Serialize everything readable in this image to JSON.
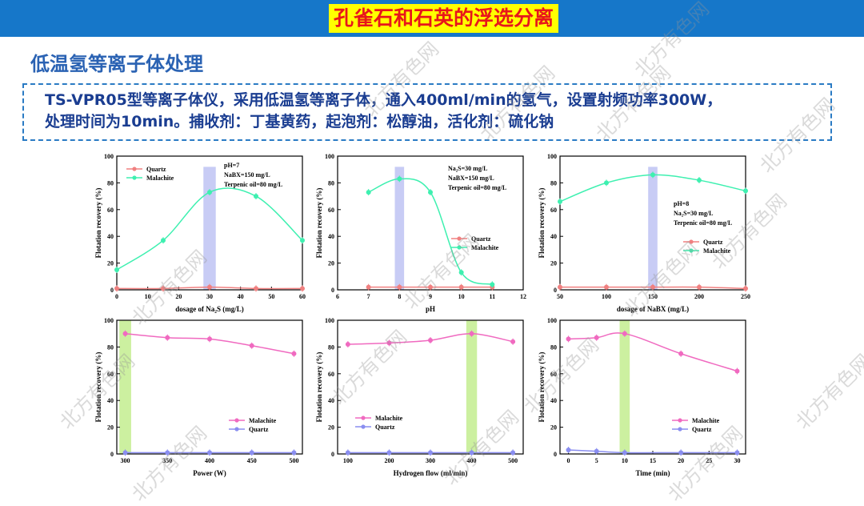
{
  "header": {
    "title": "孔雀石和石英的浮选分离",
    "subtitle": "低温氢等离子体处理",
    "desc_line1": "TS-VPR05型等离子体仪，采用低温氢等离子体，通入400ml/min的氢气，设置射频功率300W，",
    "desc_line2": "处理时间为10min。捕收剂：丁基黄药，起泡剂：松醇油，活化剂：硫化钠",
    "watermark": "北方有色网"
  },
  "colors": {
    "topbar": "#1677c9",
    "title_bg": "#ffff00",
    "title_text": "#e8161b",
    "quartz_top": "#f08080",
    "malachite_top": "#3ef0b0",
    "malachite_bottom": "#f06ac0",
    "quartz_bottom": "#8a8ef0",
    "band_blue": "#c8ccf5",
    "band_green": "#ccf0a0"
  },
  "chart_data": [
    {
      "type": "line",
      "xlabel": "dosage of Na₂S (mg/L)",
      "ylabel": "Flotation recovery (%)",
      "xlim": [
        0,
        60
      ],
      "ylim": [
        0,
        100
      ],
      "xticks": [
        "0",
        "10",
        "20",
        "30",
        "40",
        "50",
        "60"
      ],
      "yticks": [
        "0",
        "20",
        "40",
        "60",
        "80",
        "100"
      ],
      "annotations": [
        "pH=7",
        "NaBX=150 mg/L",
        "Terpenic oil=80 mg/L"
      ],
      "highlight": {
        "color": "blue",
        "from": 28,
        "to": 32
      },
      "legend": "top-left",
      "series": [
        {
          "name": "Quartz",
          "x": [
            0,
            15,
            30,
            45,
            60
          ],
          "y": [
            1,
            1,
            2,
            1,
            1
          ]
        },
        {
          "name": "Malachite",
          "x": [
            0,
            15,
            30,
            45,
            60
          ],
          "y": [
            15,
            37,
            73,
            70,
            37
          ]
        }
      ]
    },
    {
      "type": "line",
      "xlabel": "pH",
      "ylabel": "Flotation recovery (%)",
      "xlim": [
        6,
        12
      ],
      "ylim": [
        0,
        100
      ],
      "xticks": [
        "6",
        "7",
        "8",
        "9",
        "10",
        "11",
        "12"
      ],
      "yticks": [
        "0",
        "20",
        "40",
        "60",
        "80",
        "100"
      ],
      "annotations": [
        "Na₂S=30 mg/L",
        "NaBX=150 mg/L",
        "Terpenic oil=80 mg/L"
      ],
      "highlight": {
        "color": "blue",
        "from": 7.85,
        "to": 8.15
      },
      "legend": "bottom-right",
      "series": [
        {
          "name": "Quartz",
          "x": [
            7,
            8,
            9,
            10,
            11
          ],
          "y": [
            2,
            2,
            2,
            2,
            2
          ]
        },
        {
          "name": "Malachite",
          "x": [
            7,
            8,
            9,
            10,
            11
          ],
          "y": [
            73,
            83,
            73,
            13,
            4
          ]
        }
      ]
    },
    {
      "type": "line",
      "xlabel": "dosage of NaBX (mg/L)",
      "ylabel": "Flotation recovery (%)",
      "xlim": [
        50,
        250
      ],
      "ylim": [
        0,
        100
      ],
      "xticks": [
        "50",
        "100",
        "150",
        "200",
        "250"
      ],
      "yticks": [
        "0",
        "20",
        "40",
        "60",
        "80",
        "100"
      ],
      "annotations": [
        "pH=8",
        "Na₂S=30 mg/L",
        "Terpenic oil=80 mg/L"
      ],
      "highlight": {
        "color": "blue",
        "from": 145,
        "to": 155
      },
      "legend": "bottom-right",
      "series": [
        {
          "name": "Quartz",
          "x": [
            50,
            100,
            150,
            200,
            250
          ],
          "y": [
            2,
            2,
            2,
            2,
            1
          ]
        },
        {
          "name": "Malachite",
          "x": [
            50,
            100,
            150,
            200,
            250
          ],
          "y": [
            66,
            80,
            86,
            82,
            74
          ]
        }
      ]
    },
    {
      "type": "line",
      "xlabel": "Power (W)",
      "ylabel": "Flotation recovery (%)",
      "xlim": [
        290,
        510
      ],
      "ylim": [
        0,
        100
      ],
      "xticks": [
        "300",
        "350",
        "400",
        "450",
        "500"
      ],
      "yticks": [
        "0",
        "20",
        "40",
        "60",
        "80",
        "100"
      ],
      "highlight": {
        "color": "green",
        "from": 293,
        "to": 307
      },
      "legend": "bottom-right",
      "series": [
        {
          "name": "Malachite",
          "x": [
            300,
            350,
            400,
            450,
            500
          ],
          "y": [
            90,
            87,
            86,
            81,
            75
          ]
        },
        {
          "name": "Quartz",
          "x": [
            300,
            350,
            400,
            450,
            500
          ],
          "y": [
            1,
            1,
            1,
            1,
            1
          ]
        }
      ]
    },
    {
      "type": "line",
      "xlabel": "Hydrogen flow (ml/min)",
      "ylabel": "Flotation recovery (%)",
      "xlim": [
        75,
        525
      ],
      "ylim": [
        0,
        100
      ],
      "xticks": [
        "100",
        "200",
        "300",
        "400",
        "500"
      ],
      "yticks": [
        "0",
        "20",
        "40",
        "60",
        "80",
        "100"
      ],
      "highlight": {
        "color": "green",
        "from": 387,
        "to": 413
      },
      "legend": "bottom-left",
      "series": [
        {
          "name": "Malachite",
          "x": [
            100,
            200,
            300,
            400,
            500
          ],
          "y": [
            82,
            83,
            85,
            90,
            84
          ]
        },
        {
          "name": "Quartz",
          "x": [
            100,
            200,
            300,
            400,
            500
          ],
          "y": [
            1,
            1,
            1,
            1,
            1
          ]
        }
      ]
    },
    {
      "type": "line",
      "xlabel": "Time (min)",
      "ylabel": "Flotation recovery (%)",
      "xlim": [
        -1.5,
        31.5
      ],
      "ylim": [
        0,
        100
      ],
      "xticks": [
        "0",
        "5",
        "10",
        "15",
        "20",
        "25",
        "30"
      ],
      "yticks": [
        "0",
        "20",
        "40",
        "60",
        "80",
        "100"
      ],
      "highlight": {
        "color": "green",
        "from": 9.1,
        "to": 10.9
      },
      "legend": "bottom-right",
      "series": [
        {
          "name": "Malachite",
          "x": [
            0,
            5,
            10,
            20,
            30
          ],
          "y": [
            86,
            87,
            90,
            75,
            62
          ]
        },
        {
          "name": "Quartz",
          "x": [
            0,
            5,
            10,
            20,
            30
          ],
          "y": [
            3,
            2,
            1,
            1,
            1
          ]
        }
      ]
    }
  ]
}
